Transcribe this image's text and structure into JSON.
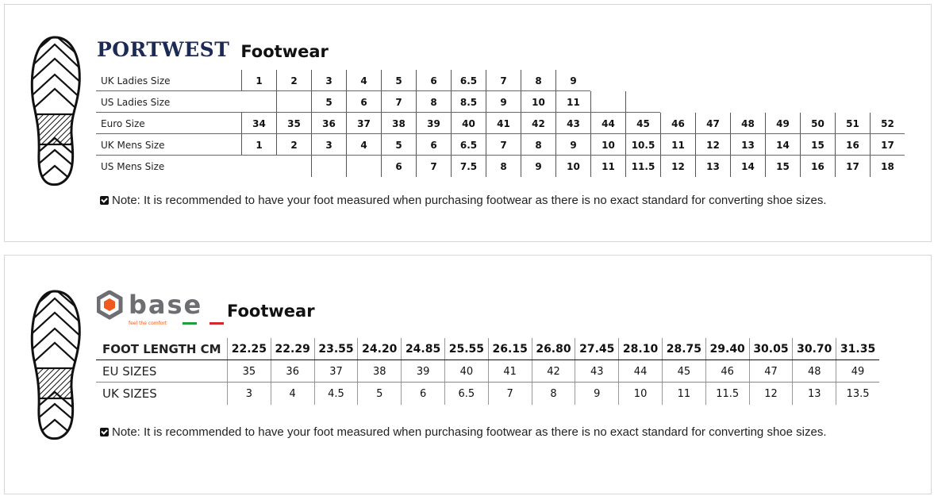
{
  "portwest": {
    "brand": "PORTWEST",
    "title": "Footwear",
    "rows": [
      {
        "label": "UK Ladies Size",
        "values": [
          "1",
          "2",
          "3",
          "4",
          "5",
          "6",
          "6.5",
          "7",
          "8",
          "9",
          "",
          "",
          "",
          "",
          "",
          "",
          "",
          "",
          ""
        ]
      },
      {
        "label": "US Ladies Size",
        "values": [
          "",
          "",
          "5",
          "6",
          "7",
          "8",
          "8.5",
          "9",
          "10",
          "11",
          "",
          "",
          "",
          "",
          "",
          "",
          "",
          "",
          ""
        ]
      },
      {
        "label": "Euro Size",
        "values": [
          "34",
          "35",
          "36",
          "37",
          "38",
          "39",
          "40",
          "41",
          "42",
          "43",
          "44",
          "45",
          "46",
          "47",
          "48",
          "49",
          "50",
          "51",
          "52"
        ]
      },
      {
        "label": "UK Mens Size",
        "values": [
          "1",
          "2",
          "3",
          "4",
          "5",
          "6",
          "6.5",
          "7",
          "8",
          "9",
          "10",
          "10.5",
          "11",
          "12",
          "13",
          "14",
          "15",
          "16",
          "17"
        ]
      },
      {
        "label": "US Mens Size",
        "values": [
          "",
          "",
          "",
          "",
          "6",
          "7",
          "7.5",
          "8",
          "9",
          "10",
          "11",
          "11.5",
          "12",
          "13",
          "14",
          "15",
          "16",
          "17",
          "18"
        ]
      }
    ],
    "note": "Note: It is recommended to have your foot measured when purchasing footwear as there is no exact standard for converting shoe sizes."
  },
  "base": {
    "brand": "base",
    "tagline": "feel the comfort",
    "title": "Footwear",
    "rows": [
      {
        "label": "FOOT LENGTH CM",
        "values": [
          "22.25",
          "22.29",
          "23.55",
          "24.20",
          "24.85",
          "25.55",
          "26.15",
          "26.80",
          "27.45",
          "28.10",
          "28.75",
          "29.40",
          "30.05",
          "30.70",
          "31.35"
        ]
      },
      {
        "label": "EU SIZES",
        "values": [
          "35",
          "36",
          "37",
          "38",
          "39",
          "40",
          "41",
          "42",
          "43",
          "44",
          "45",
          "46",
          "47",
          "48",
          "49"
        ]
      },
      {
        "label": "UK SIZES",
        "values": [
          "3",
          "4",
          "4.5",
          "5",
          "6",
          "6.5",
          "7",
          "8",
          "9",
          "10",
          "11",
          "11.5",
          "12",
          "13",
          "13.5"
        ]
      }
    ],
    "note": "Note: It is recommended to have your foot measured when purchasing footwear as there is no exact standard for converting shoe sizes.",
    "colors": {
      "orange": "#f05a1e",
      "grey": "#6d6e71",
      "green": "#1e9e3e",
      "red": "#d6262d"
    }
  }
}
